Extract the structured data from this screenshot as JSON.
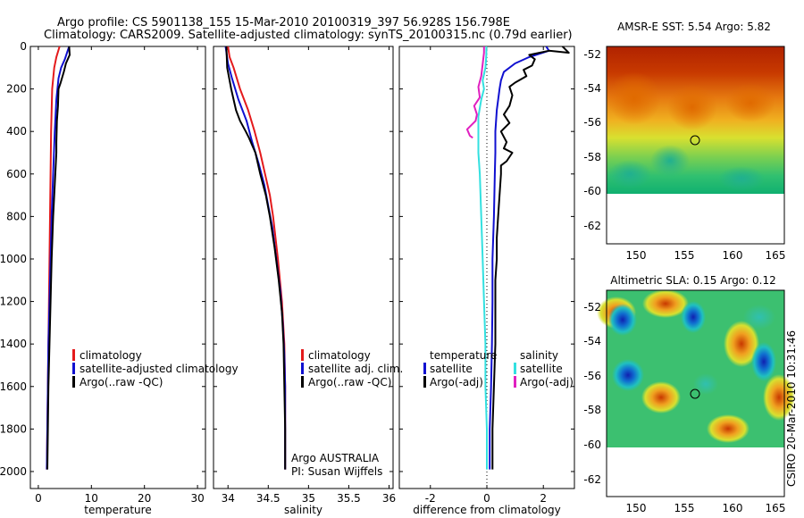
{
  "header": {
    "line1": "Argo profile: CS 5901138_155 15-Mar-2010 20100319_397 56.928S 156.798E",
    "line2": "Climatology: CARS2009. Satellite-adjusted climatology: synTS_20100315.nc (0.79d earlier)"
  },
  "side_label": "CSIRO 20-Mar-2010 10:31:46",
  "colors": {
    "climatology": "#e41a1c",
    "satellite": "#1010d0",
    "argo": "#000000",
    "sal_satellite": "#33e0e0",
    "sal_argo": "#e020c0"
  },
  "chart_data": [
    {
      "type": "line",
      "id": "temperature",
      "xlabel": "temperature",
      "xticks": [
        0,
        10,
        20,
        30
      ],
      "xlim": [
        -1.5,
        31.5
      ],
      "yticks": [
        0,
        200,
        400,
        600,
        800,
        1000,
        1200,
        1400,
        1600,
        1800,
        2000
      ],
      "ylim": [
        2080,
        0
      ],
      "legend": [
        "climatology",
        "satellite-adjusted climatology",
        "Argo(..raw -QC)"
      ],
      "series": [
        {
          "name": "climatology",
          "color": "#e41a1c",
          "points": [
            [
              4.0,
              0
            ],
            [
              3.4,
              50
            ],
            [
              3.0,
              100
            ],
            [
              2.6,
              200
            ],
            [
              2.5,
              300
            ],
            [
              2.4,
              400
            ],
            [
              2.3,
              600
            ],
            [
              2.2,
              800
            ],
            [
              2.1,
              1000
            ],
            [
              2.0,
              1200
            ],
            [
              1.9,
              1400
            ],
            [
              1.8,
              1600
            ],
            [
              1.7,
              1800
            ],
            [
              1.6,
              1990
            ]
          ]
        },
        {
          "name": "satellite-adjusted climatology",
          "color": "#1010d0",
          "points": [
            [
              5.8,
              0
            ],
            [
              5.4,
              30
            ],
            [
              5.0,
              60
            ],
            [
              4.3,
              100
            ],
            [
              3.8,
              150
            ],
            [
              3.4,
              250
            ],
            [
              3.1,
              400
            ],
            [
              2.8,
              600
            ],
            [
              2.5,
              800
            ],
            [
              2.3,
              1000
            ],
            [
              2.1,
              1200
            ],
            [
              1.9,
              1400
            ],
            [
              1.8,
              1600
            ],
            [
              1.7,
              1800
            ],
            [
              1.6,
              1990
            ]
          ]
        },
        {
          "name": "Argo(..raw -QC)",
          "color": "#000000",
          "points": [
            [
              5.8,
              0
            ],
            [
              5.9,
              40
            ],
            [
              5.2,
              80
            ],
            [
              4.8,
              120
            ],
            [
              4.2,
              170
            ],
            [
              3.8,
              200
            ],
            [
              3.7,
              280
            ],
            [
              3.5,
              350
            ],
            [
              3.4,
              450
            ],
            [
              3.4,
              500
            ],
            [
              3.1,
              650
            ],
            [
              2.8,
              800
            ],
            [
              2.5,
              1000
            ],
            [
              2.3,
              1200
            ],
            [
              2.1,
              1400
            ],
            [
              1.9,
              1600
            ],
            [
              1.8,
              1800
            ],
            [
              1.7,
              1990
            ]
          ]
        }
      ]
    },
    {
      "type": "line",
      "id": "salinity",
      "xlabel": "salinity",
      "xticks": [
        34,
        34.5,
        35,
        35.5,
        36
      ],
      "xlim": [
        33.82,
        36.05
      ],
      "yticks": [
        0,
        200,
        400,
        600,
        800,
        1000,
        1200,
        1400,
        1600,
        1800,
        2000
      ],
      "ylim": [
        2080,
        0
      ],
      "legend": [
        "climatology",
        "satellite adj. clim.",
        "Argo(..raw -QC)"
      ],
      "annotation": [
        "Argo AUSTRALIA",
        "PI: Susan Wijffels"
      ],
      "series": [
        {
          "name": "climatology",
          "color": "#e41a1c",
          "points": [
            [
              34.0,
              0
            ],
            [
              34.02,
              50
            ],
            [
              34.07,
              100
            ],
            [
              34.15,
              200
            ],
            [
              34.25,
              300
            ],
            [
              34.33,
              400
            ],
            [
              34.4,
              500
            ],
            [
              34.46,
              600
            ],
            [
              34.52,
              700
            ],
            [
              34.56,
              800
            ],
            [
              34.62,
              1000
            ],
            [
              34.67,
              1200
            ],
            [
              34.7,
              1400
            ],
            [
              34.71,
              1600
            ],
            [
              34.71,
              1800
            ],
            [
              34.71,
              1990
            ]
          ]
        },
        {
          "name": "satellite adj. clim.",
          "color": "#1010d0",
          "points": [
            [
              33.97,
              0
            ],
            [
              34.0,
              80
            ],
            [
              34.05,
              150
            ],
            [
              34.13,
              250
            ],
            [
              34.23,
              350
            ],
            [
              34.3,
              450
            ],
            [
              34.38,
              550
            ],
            [
              34.45,
              650
            ],
            [
              34.5,
              750
            ],
            [
              34.55,
              850
            ],
            [
              34.6,
              1000
            ],
            [
              34.65,
              1150
            ],
            [
              34.68,
              1300
            ],
            [
              34.7,
              1450
            ],
            [
              34.71,
              1600
            ],
            [
              34.71,
              1800
            ],
            [
              34.71,
              1990
            ]
          ]
        },
        {
          "name": "Argo(..raw -QC)",
          "color": "#000000",
          "points": [
            [
              33.98,
              0
            ],
            [
              33.99,
              100
            ],
            [
              34.04,
              200
            ],
            [
              34.1,
              300
            ],
            [
              34.15,
              350
            ],
            [
              34.22,
              400
            ],
            [
              34.26,
              430
            ],
            [
              34.34,
              500
            ],
            [
              34.4,
              600
            ],
            [
              34.47,
              700
            ],
            [
              34.52,
              800
            ],
            [
              34.58,
              950
            ],
            [
              34.63,
              1100
            ],
            [
              34.67,
              1250
            ],
            [
              34.69,
              1400
            ],
            [
              34.7,
              1600
            ],
            [
              34.71,
              1800
            ],
            [
              34.71,
              1990
            ]
          ]
        }
      ]
    },
    {
      "type": "line",
      "id": "difference",
      "xlabel": "difference from climatology",
      "xticks": [
        -2,
        0,
        2
      ],
      "xlim": [
        -3.1,
        3.1
      ],
      "yticks": [
        0,
        200,
        400,
        600,
        800,
        1000,
        1200,
        1400,
        1600,
        1800,
        2000
      ],
      "ylim": [
        2080,
        0
      ],
      "legend_temperature": [
        "temperature",
        "satellite",
        "Argo(-adj)"
      ],
      "legend_salinity": [
        "salinity",
        "satellite",
        "Argo(-adj)"
      ],
      "series": [
        {
          "name": "temperature satellite",
          "color": "#1010d0",
          "points": [
            [
              2.1,
              0
            ],
            [
              2.2,
              20
            ],
            [
              1.5,
              50
            ],
            [
              1.0,
              80
            ],
            [
              0.6,
              120
            ],
            [
              0.5,
              160
            ],
            [
              0.45,
              200
            ],
            [
              0.35,
              300
            ],
            [
              0.3,
              400
            ],
            [
              0.3,
              500
            ],
            [
              0.28,
              600
            ],
            [
              0.25,
              800
            ],
            [
              0.2,
              1000
            ],
            [
              0.2,
              1200
            ],
            [
              0.18,
              1400
            ],
            [
              0.15,
              1600
            ],
            [
              0.1,
              1800
            ],
            [
              0.1,
              1990
            ]
          ]
        },
        {
          "name": "temperature Argo(-adj)",
          "color": "#000000",
          "points": [
            [
              2.6,
              -10
            ],
            [
              2.9,
              30
            ],
            [
              2.2,
              20
            ],
            [
              1.5,
              40
            ],
            [
              1.7,
              60
            ],
            [
              1.6,
              90
            ],
            [
              1.3,
              110
            ],
            [
              1.4,
              140
            ],
            [
              1.0,
              170
            ],
            [
              0.8,
              190
            ],
            [
              0.9,
              230
            ],
            [
              0.8,
              280
            ],
            [
              0.6,
              320
            ],
            [
              0.8,
              360
            ],
            [
              0.5,
              400
            ],
            [
              0.7,
              450
            ],
            [
              0.6,
              480
            ],
            [
              0.9,
              500
            ],
            [
              0.7,
              540
            ],
            [
              0.5,
              560
            ],
            [
              0.5,
              600
            ],
            [
              0.45,
              700
            ],
            [
              0.4,
              800
            ],
            [
              0.35,
              900
            ],
            [
              0.35,
              1000
            ],
            [
              0.3,
              1100
            ],
            [
              0.3,
              1200
            ],
            [
              0.3,
              1400
            ],
            [
              0.25,
              1600
            ],
            [
              0.2,
              1800
            ],
            [
              0.2,
              1990
            ]
          ]
        },
        {
          "name": "salinity satellite",
          "color": "#33e0e0",
          "points": [
            [
              -0.02,
              0
            ],
            [
              -0.02,
              40
            ],
            [
              -0.05,
              100
            ],
            [
              -0.15,
              160
            ],
            [
              -0.1,
              200
            ],
            [
              -0.2,
              250
            ],
            [
              -0.3,
              330
            ],
            [
              -0.3,
              380
            ],
            [
              -0.3,
              420
            ],
            [
              -0.3,
              500
            ],
            [
              -0.25,
              600
            ],
            [
              -0.2,
              800
            ],
            [
              -0.15,
              1000
            ],
            [
              -0.1,
              1200
            ],
            [
              -0.05,
              1400
            ],
            [
              -0.05,
              1600
            ],
            [
              0.0,
              1800
            ],
            [
              0.0,
              1990
            ]
          ]
        },
        {
          "name": "salinity Argo(-adj)",
          "color": "#e020c0",
          "points": [
            [
              -0.1,
              0
            ],
            [
              -0.1,
              30
            ],
            [
              -0.2,
              140
            ],
            [
              -0.3,
              190
            ],
            [
              -0.25,
              240
            ],
            [
              -0.45,
              280
            ],
            [
              -0.35,
              320
            ],
            [
              -0.4,
              350
            ],
            [
              -0.7,
              390
            ],
            [
              -0.6,
              420
            ],
            [
              -0.5,
              430
            ]
          ]
        }
      ]
    }
  ],
  "maps": [
    {
      "title": "AMSR-E SST: 5.54 Argo: 5.82",
      "xticks": [
        150,
        155,
        160,
        165
      ],
      "yticks": [
        -52,
        -54,
        -56,
        -58,
        -60,
        -62
      ],
      "argo_lon": 156.798,
      "argo_lat": -56.928
    },
    {
      "title": "Altimetric SLA: 0.15 Argo: 0.12",
      "xticks": [
        150,
        155,
        160,
        165
      ],
      "yticks": [
        -52,
        -54,
        -56,
        -58,
        -60,
        -62
      ],
      "argo_lon": 156.798,
      "argo_lat": -56.928
    }
  ]
}
